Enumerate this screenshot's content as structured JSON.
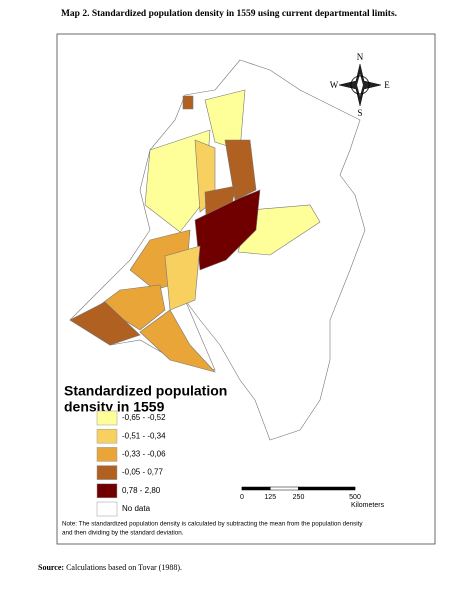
{
  "title": "Map 2. Standardized population density in 1559 using current departmental limits.",
  "compass": {
    "north": "N",
    "west": "W",
    "east": "E",
    "south": "S"
  },
  "legend": {
    "title_lines": [
      "Standardized population",
      "density in 1559"
    ],
    "items": [
      {
        "label": "-0,65 - -0,52",
        "color": "#ffff99"
      },
      {
        "label": "-0,51 - -0,34",
        "color": "#f7d060"
      },
      {
        "label": "-0,33 - -0,06",
        "color": "#eaa538"
      },
      {
        "label": "-0,05 - 0,77",
        "color": "#b06020"
      },
      {
        "label": "0,78 - 2,80",
        "color": "#700000"
      },
      {
        "label": "No data",
        "color": "#ffffff"
      }
    ]
  },
  "scale": {
    "ticks": [
      0,
      125,
      250,
      500
    ],
    "unit": "Kilometers"
  },
  "note": [
    "Note: The standardized population density is calculated by subtracting the mean from the population density",
    "and then dividing by the standard deviation."
  ],
  "source": {
    "label": "Source:",
    "text": "Calculations based on Tovar (1988)."
  }
}
